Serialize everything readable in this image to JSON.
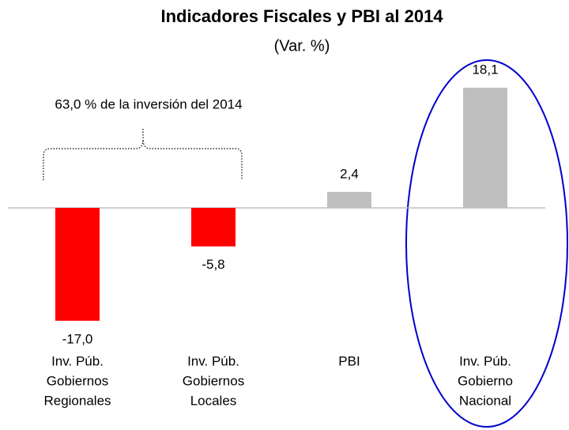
{
  "chart_data": {
    "type": "bar",
    "title": "Indicadores Fiscales y PBI al 2014",
    "subtitle": "(Var. %)",
    "annotation": "63,0 % de la inversión del 2014",
    "categories": [
      [
        "Inv. Púb.",
        "Gobiernos",
        "Regionales"
      ],
      [
        "Inv. Púb.",
        "Gobiernos",
        "Locales"
      ],
      [
        "PBI"
      ],
      [
        "Inv. Púb.",
        "Gobierno",
        "Nacional"
      ]
    ],
    "values": [
      -17.0,
      -5.8,
      2.4,
      18.1
    ],
    "value_labels": [
      "-17,0",
      "-5,8",
      "2,4",
      "18,1"
    ],
    "colors": [
      "#ff0000",
      "#ff0000",
      "#bfbfbf",
      "#bfbfbf"
    ],
    "ylim": [
      -20,
      20
    ]
  }
}
